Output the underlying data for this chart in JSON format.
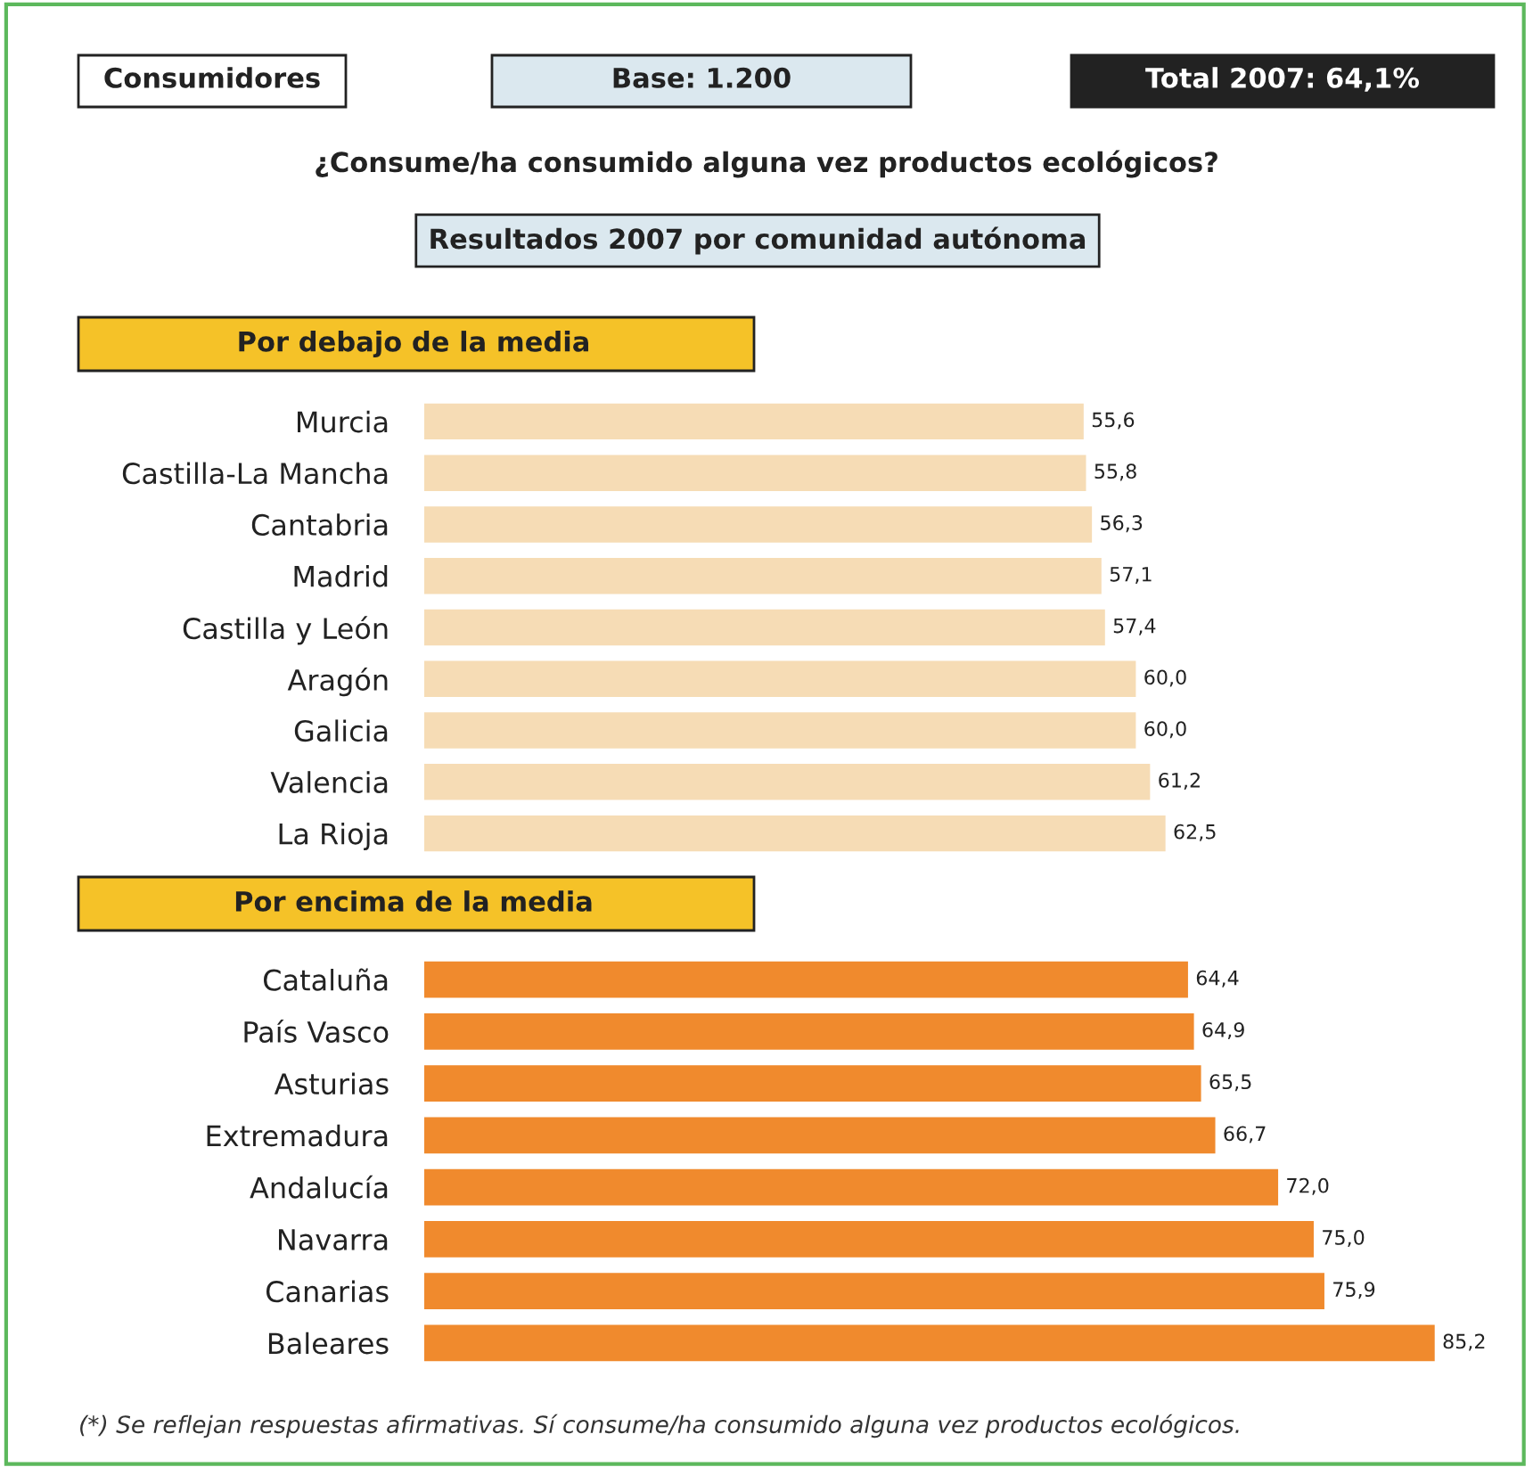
{
  "chart_data": [
    {
      "type": "other",
      "title": "¿Consume/ha consumido alguna vez productos ecológicos?",
      "subtitle": "Resultados 2007 por comunidad autónoma",
      "annotations": [
        "Consumidores",
        "Base: 1.200",
        "Total 2007: 64,1%"
      ]
    },
    {
      "type": "bar",
      "orientation": "horizontal",
      "title": "Por debajo de la media",
      "tick_labels": "y",
      "categories": [
        "Murcia",
        "Castilla-La Mancha",
        "Cantabria",
        "Madrid",
        "Castilla y León",
        "Aragón",
        "Galicia",
        "Valencia",
        "La Rioja"
      ],
      "values": [
        55.6,
        55.8,
        56.3,
        57.1,
        57.4,
        60.0,
        60.0,
        61.2,
        62.5
      ],
      "value_labels": [
        "55,6",
        "55,8",
        "56,3",
        "57,1",
        "57,4",
        "60,0",
        "60,0",
        "61,2",
        "62,5"
      ],
      "color": "#f6dcb5"
    },
    {
      "type": "bar",
      "orientation": "horizontal",
      "title": "Por encima de la media",
      "tick_labels": "y",
      "categories": [
        "Cataluña",
        "País Vasco",
        "Asturias",
        "Extremadura",
        "Andalucía",
        "Navarra",
        "Canarias",
        "Baleares"
      ],
      "values": [
        64.4,
        64.9,
        65.5,
        66.7,
        72.0,
        75.0,
        75.9,
        85.2
      ],
      "value_labels": [
        "64,4",
        "64,9",
        "65,5",
        "66,7",
        "72,0",
        "75,0",
        "75,9",
        "85,2"
      ],
      "color": "#f08a2d",
      "annotations": [
        "(*) Se reflejan respuestas afirmativas. Sí consume/ha consumido alguna vez productos ecológicos."
      ]
    }
  ]
}
